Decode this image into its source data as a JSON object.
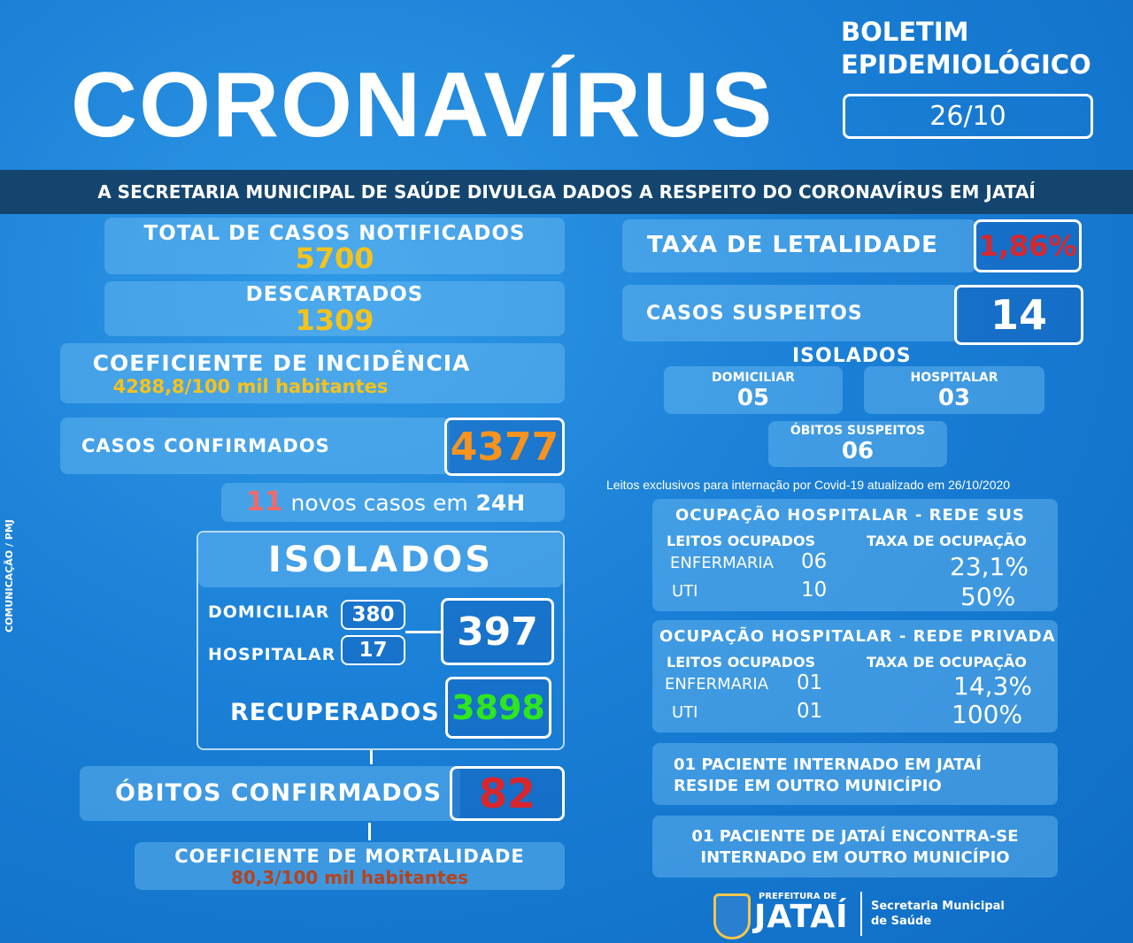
{
  "header": {
    "title": "CORONAVÍRUS",
    "bulletin_label": "BOLETIM\nEPIDEMIOLÓGICO",
    "date": "26/10",
    "banner": "A SECRETARIA MUNICIPAL DE SAÚDE DIVULGA DADOS A RESPEITO DO CORONAVÍRUS EM JATAÍ"
  },
  "side_credit": "COMUNICAÇÃO / PMJ",
  "left": {
    "notificados_label": "TOTAL DE CASOS NOTIFICADOS",
    "notificados": "5700",
    "descartados_label": "DESCARTADOS",
    "descartados": "1309",
    "incidencia_label": "COEFICIENTE DE INCIDÊNCIA",
    "incidencia": "4288,8/100 mil habitantes",
    "confirmados_label": "CASOS CONFIRMADOS",
    "confirmados": "4377",
    "novos_num": "11",
    "novos_text": "novos casos em",
    "novos_period": "24H",
    "isolados_label": "ISOLADOS",
    "domiciliar_label": "DOMICILIAR",
    "domiciliar": "380",
    "hospitalar_label": "HOSPITALAR",
    "hospitalar": "17",
    "isolados_total": "397",
    "recuperados_label": "RECUPERADOS",
    "recuperados": "3898",
    "obitos_label": "ÓBITOS CONFIRMADOS",
    "obitos": "82",
    "mortalidade_label": "COEFICIENTE DE MORTALIDADE",
    "mortalidade": "80,3/100 mil habitantes"
  },
  "right": {
    "letalidade_label": "TAXA DE LETALIDADE",
    "letalidade": "1,86%",
    "suspeitos_label": "CASOS SUSPEITOS",
    "suspeitos": "14",
    "isolados_label": "ISOLADOS",
    "domiciliar_label": "DOMICILIAR",
    "domiciliar": "05",
    "hospitalar_label": "HOSPITALAR",
    "hospitalar": "03",
    "obitos_suspeitos_label": "ÓBITOS SUSPEITOS",
    "obitos_suspeitos": "06",
    "leitos_note": "Leitos exclusivos para internação por Covid-19 atualizado em 26/10/2020",
    "sus": {
      "title": "OCUPAÇÃO HOSPITALAR - REDE SUS",
      "col1": "LEITOS OCUPADOS",
      "col2": "TAXA DE OCUPAÇÃO",
      "rows": [
        {
          "label": "ENFERMARIA",
          "beds": "06",
          "rate": "23,1%"
        },
        {
          "label": "UTI",
          "beds": "10",
          "rate": "50%"
        }
      ]
    },
    "privada": {
      "title": "OCUPAÇÃO HOSPITALAR - REDE PRIVADA",
      "col1": "LEITOS OCUPADOS",
      "col2": "TAXA DE OCUPAÇÃO",
      "rows": [
        {
          "label": "ENFERMARIA",
          "beds": "01",
          "rate": "14,3%"
        },
        {
          "label": "UTI",
          "beds": "01",
          "rate": "100%"
        }
      ]
    },
    "note1": "01 PACIENTE INTERNADO EM JATAÍ\nRESIDE EM OUTRO MUNICÍPIO",
    "note2": "01 PACIENTE DE JATAÍ ENCONTRA-SE\nINTERNADO EM OUTRO MUNICÍPIO"
  },
  "footer": {
    "logo_small": "PREFEITURA DE",
    "logo_big": "JATAÍ",
    "secretaria": "Secretaria Municipal\nde Saúde"
  },
  "colors": {
    "yellow": "#f6c21c",
    "orange": "#f7931e",
    "red": "#d8262c",
    "green": "#2ee61e"
  }
}
